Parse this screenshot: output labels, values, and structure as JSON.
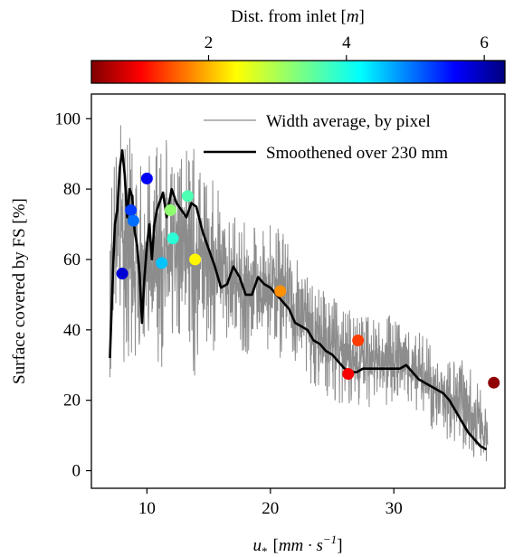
{
  "chart_data": {
    "type": "scatter",
    "title": "",
    "xlabel": "u* [mm·s⁻¹]",
    "xlabel_parts": {
      "symbol": "u",
      "subscript": "*",
      "unit_open": "[",
      "unit_body": "mm · s",
      "unit_sup": "−1",
      "unit_close": "]"
    },
    "ylabel": "Surface covered by FS [%]",
    "xlim": [
      5.5,
      39
    ],
    "ylim": [
      -5,
      107
    ],
    "xticks": [
      10,
      20,
      30
    ],
    "yticks": [
      0,
      20,
      40,
      60,
      80,
      100
    ],
    "grid": false,
    "legend": {
      "placement": "top-right",
      "entries": [
        {
          "label": "Width average, by pixel",
          "color": "#8c8c8c",
          "style": "thin-line"
        },
        {
          "label": "Smoothened over 230 mm",
          "color": "#000000",
          "style": "thick-line"
        }
      ]
    },
    "colorbar": {
      "label": "Dist. from inlet [m]",
      "label_parts": {
        "text": "Dist. from inlet [",
        "unit": "m",
        "close": "]"
      },
      "colormap": "jet_r",
      "range": [
        0.3,
        6.3
      ],
      "ticks": [
        2,
        4,
        6
      ],
      "position": "top"
    },
    "series": [
      {
        "name": "Width average, by pixel",
        "style": "line",
        "color": "#8c8c8c",
        "x_range": [
          7.0,
          37.6
        ],
        "envelope": {
          "x": [
            7.0,
            7.5,
            8.0,
            8.5,
            9.0,
            9.5,
            10.0,
            10.5,
            11.0,
            11.5,
            12.0,
            12.5,
            13.0,
            14.0,
            15.0,
            16.0,
            17.0,
            18.0,
            19.0,
            20.0,
            21.0,
            22.0,
            23.0,
            24.0,
            25.0,
            26.0,
            27.0,
            28.0,
            29.0,
            30.0,
            31.0,
            32.0,
            33.0,
            34.0,
            35.0,
            36.0,
            37.0,
            37.6
          ],
          "upper": [
            75,
            95,
            100,
            96,
            92,
            95,
            88,
            98,
            90,
            96,
            88,
            90,
            92,
            94,
            90,
            78,
            72,
            72,
            68,
            75,
            68,
            65,
            55,
            52,
            50,
            47,
            44,
            45,
            42,
            46,
            42,
            40,
            37,
            34,
            33,
            30,
            25,
            16
          ],
          "lower": [
            20,
            45,
            30,
            30,
            28,
            25,
            10,
            35,
            20,
            35,
            32,
            32,
            35,
            25,
            30,
            33,
            38,
            32,
            32,
            30,
            30,
            30,
            25,
            22,
            20,
            18,
            18,
            18,
            20,
            16,
            20,
            16,
            12,
            8,
            6,
            5,
            3,
            1
          ]
        }
      },
      {
        "name": "Smoothened over 230 mm",
        "style": "line",
        "color": "#000000",
        "x": [
          7.0,
          7.2,
          7.4,
          7.6,
          7.8,
          8.0,
          8.2,
          8.4,
          8.6,
          8.8,
          9.0,
          9.2,
          9.4,
          9.6,
          9.8,
          10.0,
          10.2,
          10.4,
          10.6,
          10.8,
          11.0,
          11.3,
          11.6,
          12.0,
          12.4,
          12.8,
          13.2,
          13.6,
          14.0,
          14.5,
          15.0,
          15.5,
          16.0,
          16.5,
          17.0,
          17.5,
          18.0,
          18.5,
          19.0,
          19.5,
          20.0,
          20.5,
          21.0,
          21.5,
          22.0,
          22.5,
          23.0,
          23.5,
          24.0,
          24.5,
          25.0,
          25.5,
          26.0,
          26.5,
          27.0,
          27.5,
          28.0,
          28.5,
          29.0,
          29.5,
          30.0,
          30.5,
          31.0,
          31.5,
          32.0,
          32.5,
          33.0,
          33.5,
          34.0,
          34.5,
          35.0,
          35.5,
          36.0,
          36.5,
          37.0,
          37.5
        ],
        "y": [
          32,
          52,
          70,
          74,
          86,
          91,
          84,
          72,
          80,
          78,
          68,
          64,
          56,
          42,
          55,
          64,
          70,
          60,
          70,
          74,
          76,
          79,
          72,
          80,
          76,
          74,
          72,
          76,
          75,
          68,
          63,
          58,
          52,
          53,
          58,
          55,
          50,
          50,
          55,
          53,
          52,
          50,
          48,
          46,
          42,
          41,
          40,
          37,
          36,
          34,
          33,
          31,
          29,
          28,
          28,
          29,
          29,
          29,
          29,
          29,
          29,
          29,
          30,
          28,
          26,
          25,
          24,
          23,
          22,
          20,
          17,
          14,
          11,
          9,
          7,
          6
        ]
      },
      {
        "name": "",
        "style": "scatter",
        "points": [
          {
            "x": 8.0,
            "y": 56,
            "d": 5.8
          },
          {
            "x": 8.7,
            "y": 74,
            "d": 5.2
          },
          {
            "x": 8.9,
            "y": 71,
            "d": 4.9
          },
          {
            "x": 10.0,
            "y": 83,
            "d": 5.6
          },
          {
            "x": 11.2,
            "y": 59,
            "d": 4.4
          },
          {
            "x": 11.9,
            "y": 74,
            "d": 3.2
          },
          {
            "x": 12.1,
            "y": 66,
            "d": 3.8
          },
          {
            "x": 13.3,
            "y": 78,
            "d": 3.6
          },
          {
            "x": 13.9,
            "y": 60,
            "d": 2.5
          },
          {
            "x": 20.8,
            "y": 51,
            "d": 1.9
          },
          {
            "x": 26.3,
            "y": 27.5,
            "d": 1.0
          },
          {
            "x": 27.1,
            "y": 37,
            "d": 1.4
          },
          {
            "x": 38.1,
            "y": 25,
            "d": 0.4
          }
        ]
      }
    ]
  }
}
